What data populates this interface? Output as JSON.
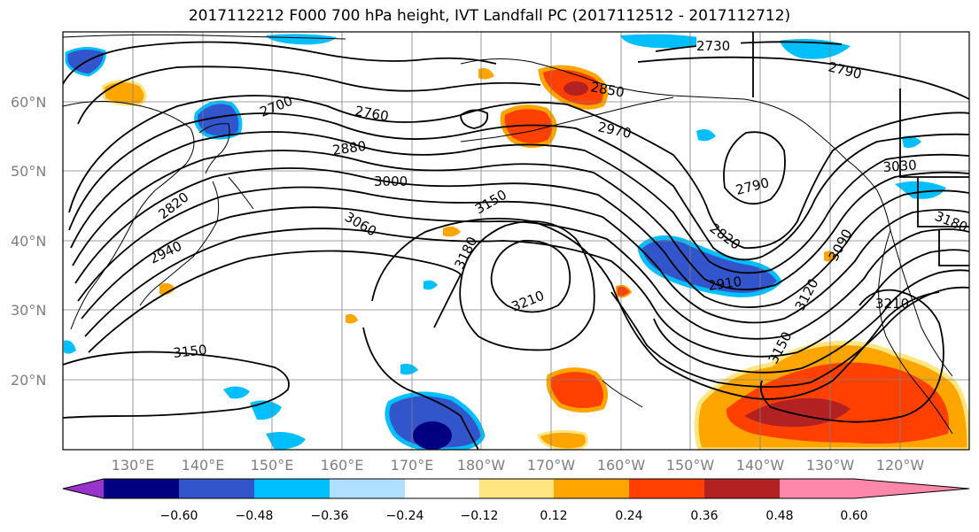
{
  "title": "2017112212 F000 700 hPa height, IVT Landfall PC (2017112512 - 2017112712)",
  "lat_labels": [
    "60°N",
    "50°N",
    "40°N",
    "30°N",
    "20°N"
  ],
  "lon_labels": [
    "130°E",
    "140°E",
    "150°E",
    "160°E",
    "170°E",
    "180°W",
    "170°W",
    "160°W",
    "150°W",
    "140°W",
    "130°W",
    "120°W"
  ],
  "contour_labels": [
    "2730",
    "2790",
    "2700",
    "2760",
    "2850",
    "2970",
    "2880",
    "3000",
    "3030",
    "2820",
    "3150",
    "3060",
    "2790",
    "3180",
    "2820",
    "2940",
    "3180",
    "3090",
    "3210",
    "2910",
    "3120",
    "3210",
    "3150",
    "3150"
  ],
  "colorbar": {
    "ticks": [
      "−0.60",
      "−0.48",
      "−0.36",
      "−0.24",
      "−0.12",
      "0.12",
      "0.24",
      "0.36",
      "0.48",
      "0.60"
    ],
    "colors": [
      "#9933cc",
      "#000080",
      "#3355cc",
      "#00bfff",
      "#b0e0ff",
      "#ffffff",
      "#ffe680",
      "#ffa500",
      "#ff4000",
      "#b22222",
      "#ff88aa"
    ]
  },
  "shading": {
    "neg_light": "#b0e0ff",
    "neg_mid": "#00bfff",
    "neg_dark": "#3355cc",
    "neg_darkest": "#000080",
    "pos_light": "#ffe680",
    "pos_mid": "#ffa500",
    "pos_dark": "#ff4000",
    "pos_darkest": "#b22222"
  }
}
